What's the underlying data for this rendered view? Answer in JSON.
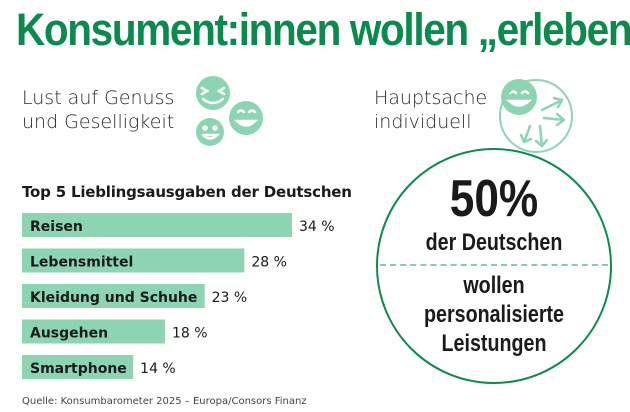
{
  "title": "Konsument:innen wollen „erleben“",
  "features": {
    "left": {
      "line1": "Lust auf Genuss",
      "line2": "und Geselligkeit",
      "icon": "smiley-faces-icon"
    },
    "right": {
      "line1": "Hauptsache",
      "line2": "individuell",
      "icon": "smiley-arrows-icon"
    }
  },
  "colors": {
    "title": "#0a8a4d",
    "bar": "#8dd4b3",
    "icon": "#8dd4b3",
    "circle": "#0a8a4d",
    "divider": "#7fcfa9"
  },
  "chart_data": {
    "type": "bar",
    "orientation": "horizontal",
    "title": "Top 5 Lieblingsausgaben der Deutschen",
    "categories": [
      "Reisen",
      "Lebensmittel",
      "Kleidung und Schuhe",
      "Ausgehen",
      "Smartphone"
    ],
    "values": [
      34,
      28,
      23,
      18,
      14
    ],
    "value_labels": [
      "34 %",
      "28 %",
      "23 %",
      "18 %",
      "14 %"
    ],
    "xlim": [
      0,
      34
    ],
    "grid": false,
    "legend": "none"
  },
  "highlight": {
    "percent": "50%",
    "subject": "der Deutschen",
    "lines": [
      "wollen",
      "personalisierte",
      "Leistungen"
    ]
  },
  "source": "Quelle: Konsumbarometer 2025 – Europa/Consors Finanz"
}
